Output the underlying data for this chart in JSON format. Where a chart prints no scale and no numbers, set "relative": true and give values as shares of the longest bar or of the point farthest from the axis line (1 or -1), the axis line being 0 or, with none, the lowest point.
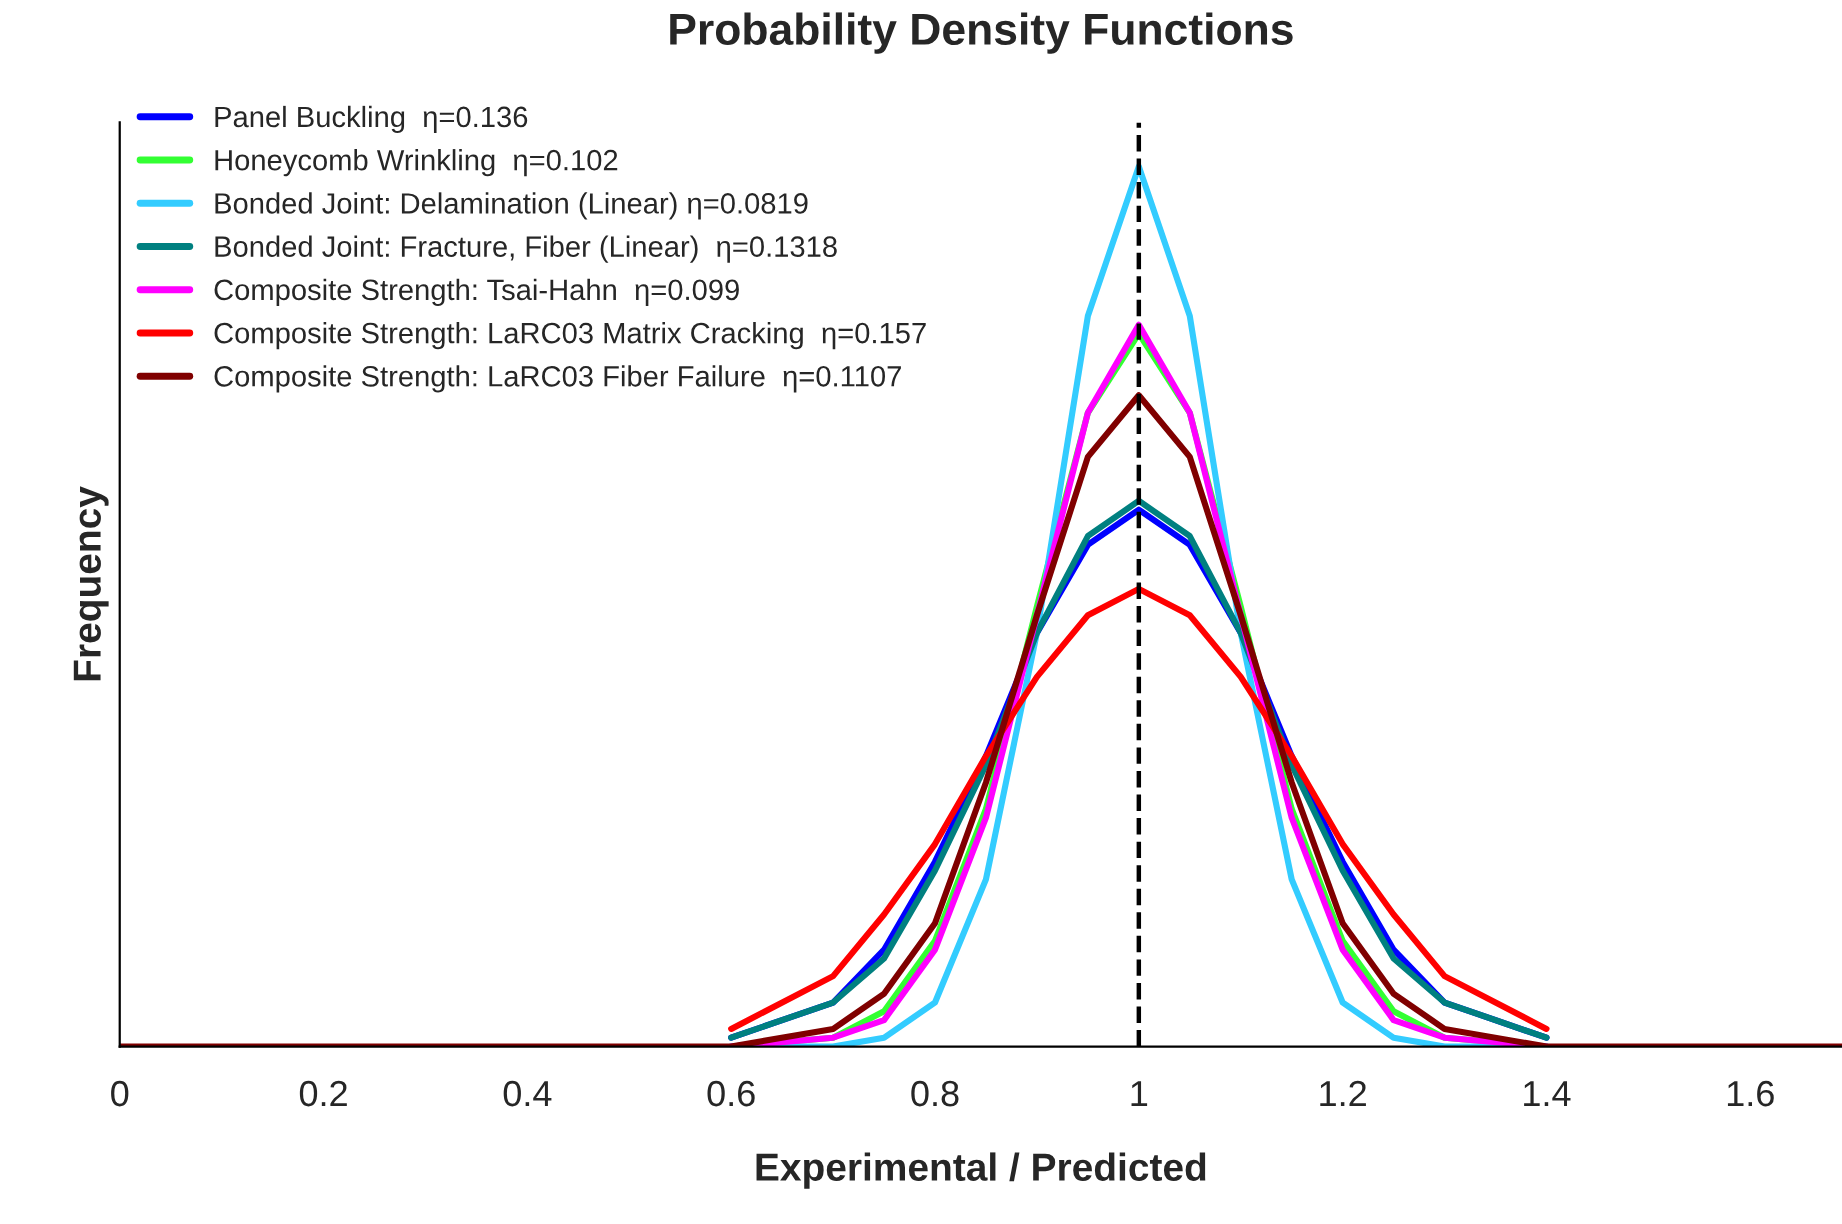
{
  "chart_data": {
    "type": "line",
    "title": "Probability Density Functions",
    "xlabel": "Experimental / Predicted",
    "ylabel": "Frequency",
    "relative": true,
    "x": [
      0,
      0.5,
      0.6,
      0.7,
      0.75,
      0.8,
      0.85,
      0.9,
      0.95,
      1,
      1.05,
      1.1,
      1.15,
      1.2,
      1.25,
      1.3,
      1.4,
      1.5,
      1.69
    ],
    "xlim": [
      0,
      1.69
    ],
    "xticks": [
      0,
      0.2,
      0.4,
      0.6,
      0.8,
      1,
      1.2,
      1.4,
      1.6
    ],
    "legend": "top left",
    "grid": false,
    "line_style": "solid",
    "marker": "none",
    "ref_lines": [
      {
        "axis": "x",
        "value": 1,
        "line_style": "dashed",
        "color": "#000000"
      }
    ],
    "series": [
      {
        "name": "Panel Buckling  η=0.136",
        "color": "#0000ff",
        "values": [
          null,
          null,
          0.01,
          0.05,
          0.11,
          0.21,
          0.33,
          0.47,
          0.57,
          0.61,
          0.57,
          0.47,
          0.33,
          0.21,
          0.11,
          0.05,
          0.01,
          null,
          null
        ]
      },
      {
        "name": "Honeycomb Wrinkling  η=0.102",
        "color": "#33ff33",
        "values": [
          null,
          null,
          0,
          0.01,
          0.04,
          0.12,
          0.27,
          0.5,
          0.72,
          0.81,
          0.72,
          0.5,
          0.27,
          0.12,
          0.04,
          0.01,
          0,
          null,
          null
        ]
      },
      {
        "name": "Bonded Joint: Delamination (Linear) η=0.0819",
        "color": "#33ccff",
        "values": [
          null,
          null,
          0,
          0,
          0.01,
          0.05,
          0.19,
          0.47,
          0.83,
          1,
          0.83,
          0.47,
          0.19,
          0.05,
          0.01,
          0,
          0,
          null,
          null
        ]
      },
      {
        "name": "Bonded Joint: Fracture, Fiber (Linear)  η=0.1318",
        "color": "#008080",
        "values": [
          null,
          null,
          0.01,
          0.05,
          0.1,
          0.2,
          0.32,
          0.47,
          0.58,
          0.62,
          0.58,
          0.47,
          0.32,
          0.2,
          0.1,
          0.05,
          0.01,
          null,
          null
        ]
      },
      {
        "name": "Composite Strength: Tsai-Hahn  η=0.099",
        "color": "#ff00ff",
        "values": [
          null,
          null,
          0,
          0.01,
          0.03,
          0.11,
          0.26,
          0.49,
          0.72,
          0.82,
          0.72,
          0.49,
          0.26,
          0.11,
          0.03,
          0.01,
          0,
          null,
          null
        ]
      },
      {
        "name": "Composite Strength: LaRC03 Matrix Cracking  η=0.157",
        "color": "#ff0000",
        "values": [
          null,
          null,
          0.02,
          0.08,
          0.15,
          0.23,
          0.33,
          0.42,
          0.49,
          0.52,
          0.49,
          0.42,
          0.33,
          0.23,
          0.15,
          0.08,
          0.02,
          null,
          null
        ]
      },
      {
        "name": "Composite Strength: LaRC03 Fiber Failure  η=0.1107",
        "color": "#800000",
        "values": [
          0,
          0,
          0,
          0.02,
          0.06,
          0.14,
          0.3,
          0.49,
          0.67,
          0.74,
          0.67,
          0.49,
          0.3,
          0.14,
          0.06,
          0.02,
          0,
          0,
          0
        ]
      }
    ]
  }
}
